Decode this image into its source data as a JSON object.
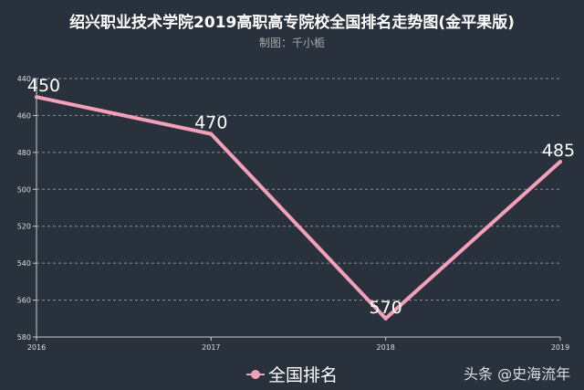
{
  "chart_data": {
    "type": "line",
    "title": "绍兴职业技术学院2019高职高专院校全国排名走势图(金平果版)",
    "subtitle": "制图：千小栀",
    "categories": [
      "2016",
      "2017",
      "2018",
      "2019"
    ],
    "series": [
      {
        "name": "全国排名",
        "values": [
          450,
          470,
          570,
          485
        ],
        "color": "#f4a0b9"
      }
    ],
    "yticks": [
      440,
      460,
      480,
      500,
      520,
      540,
      560,
      580
    ],
    "ylim": [
      440,
      580
    ],
    "y_inverted": true,
    "grid": true,
    "legend": "bottom-center"
  },
  "watermark": "头条 @史海流年"
}
